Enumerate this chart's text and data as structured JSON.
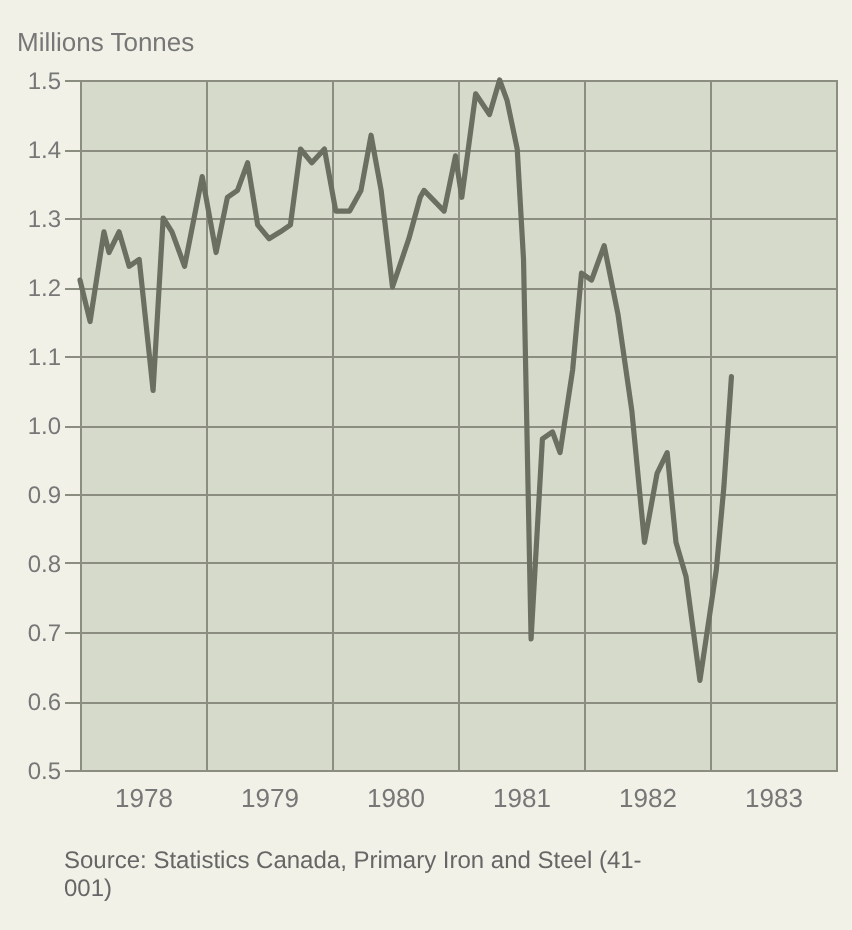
{
  "chart_data": {
    "type": "line",
    "ylabel": "Millions Tonnes",
    "x": [
      1978.0,
      1978.08,
      1978.19,
      1978.23,
      1978.31,
      1978.39,
      1978.47,
      1978.58,
      1978.66,
      1978.73,
      1978.83,
      1978.97,
      1979.08,
      1979.17,
      1979.25,
      1979.33,
      1979.41,
      1979.5,
      1979.59,
      1979.67,
      1979.75,
      1979.84,
      1979.94,
      1980.03,
      1980.14,
      1980.23,
      1980.31,
      1980.39,
      1980.48,
      1980.61,
      1980.7,
      1980.73,
      1980.89,
      1980.98,
      1981.03,
      1981.14,
      1981.25,
      1981.33,
      1981.39,
      1981.47,
      1981.52,
      1981.58,
      1981.67,
      1981.75,
      1981.81,
      1981.91,
      1981.98,
      1982.06,
      1982.16,
      1982.27,
      1982.38,
      1982.48,
      1982.58,
      1982.66,
      1982.73,
      1982.81,
      1982.92,
      1983.05,
      1983.11,
      1983.17
    ],
    "series": [
      {
        "color": "#6b6f62",
        "values": [
          1.21,
          1.15,
          1.28,
          1.25,
          1.28,
          1.23,
          1.24,
          1.05,
          1.3,
          1.28,
          1.23,
          1.36,
          1.25,
          1.33,
          1.34,
          1.38,
          1.29,
          1.27,
          1.28,
          1.29,
          1.4,
          1.38,
          1.4,
          1.31,
          1.31,
          1.34,
          1.42,
          1.34,
          1.2,
          1.27,
          1.33,
          1.34,
          1.31,
          1.39,
          1.33,
          1.48,
          1.45,
          1.5,
          1.47,
          1.4,
          1.24,
          0.69,
          0.98,
          0.99,
          0.96,
          1.08,
          1.22,
          1.21,
          1.26,
          1.16,
          1.02,
          0.83,
          0.93,
          0.96,
          0.83,
          0.78,
          0.63,
          0.79,
          0.91,
          1.07
        ]
      }
    ],
    "xlim": [
      1978,
      1984
    ],
    "xticks": [
      {
        "value": 1978.5,
        "label": "1978"
      },
      {
        "value": 1979,
        "label": null
      },
      {
        "value": 1979.5,
        "label": "1979"
      },
      {
        "value": 1980,
        "label": null
      },
      {
        "value": 1980.5,
        "label": "1980"
      },
      {
        "value": 1981,
        "label": null
      },
      {
        "value": 1981.5,
        "label": "1981"
      },
      {
        "value": 1982,
        "label": null
      },
      {
        "value": 1982.5,
        "label": "1982"
      },
      {
        "value": 1983,
        "label": null
      },
      {
        "value": 1983.5,
        "label": "1983"
      }
    ],
    "ylim": [
      0.5,
      1.5
    ],
    "yticks": [
      0.5,
      0.6,
      0.7,
      0.8,
      0.9,
      {
        "value": 1.0,
        "label": "1.0"
      },
      1.1,
      1.2,
      1.3,
      1.4,
      1.5
    ],
    "grid": true,
    "line_style": "solid",
    "annotations": [
      "Source: Statistics Canada, Primary Iron and Steel (41-001)"
    ]
  }
}
